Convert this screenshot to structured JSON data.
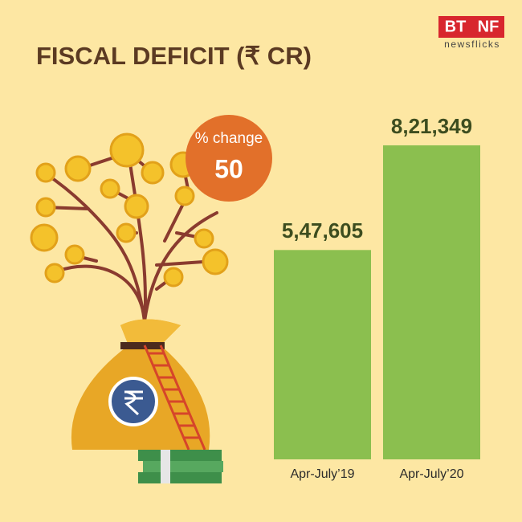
{
  "logo": {
    "left": "BT",
    "right": "NF",
    "tagline": "newsflicks"
  },
  "chart_data": {
    "type": "bar",
    "title": "FISCAL DEFICIT (₹ CR)",
    "categories": [
      "Apr-July’19",
      "Apr-July’20"
    ],
    "values": [
      547605,
      821349
    ],
    "value_labels": [
      "5,47,605",
      "8,21,349"
    ],
    "color": "#8bbf4f",
    "annotation": {
      "label": "% change",
      "value": 50
    }
  }
}
